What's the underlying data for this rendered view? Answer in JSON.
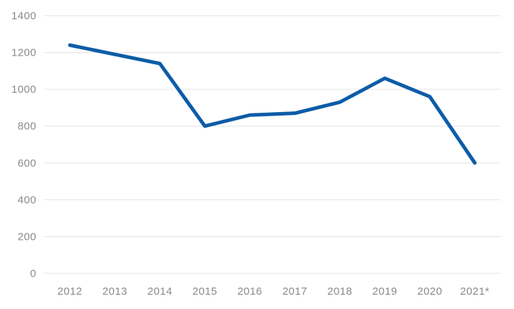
{
  "chart_data": {
    "type": "line",
    "title": "",
    "xlabel": "",
    "ylabel": "",
    "categories": [
      "2012",
      "2013",
      "2014",
      "2015",
      "2016",
      "2017",
      "2018",
      "2019",
      "2020",
      "2021*"
    ],
    "series": [
      {
        "name": "series-1",
        "values": [
          1240,
          1190,
          1140,
          800,
          860,
          870,
          930,
          1060,
          960,
          600
        ]
      }
    ],
    "ylim": [
      0,
      1400
    ],
    "yticks": [
      0,
      200,
      400,
      600,
      800,
      1000,
      1200,
      1400
    ],
    "grid": true,
    "legend_position": "none",
    "colors": {
      "line": "#0d5ca8",
      "axis_label": "#8d8a87",
      "gridline": "#e8e8e8",
      "background": "#ffffff"
    }
  }
}
